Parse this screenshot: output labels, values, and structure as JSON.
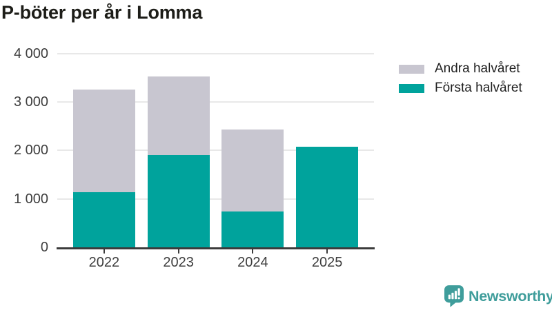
{
  "title": "P-böter per år i Lomma",
  "chart_data": {
    "type": "bar",
    "stacked": true,
    "title": "P-böter per år i Lomma",
    "categories": [
      "2022",
      "2023",
      "2024",
      "2025"
    ],
    "series": [
      {
        "name": "Första halvåret",
        "color": "#00a39c",
        "values": [
          1140,
          1910,
          740,
          2070
        ]
      },
      {
        "name": "Andra halvåret",
        "color": "#c8c6d0",
        "values": [
          2120,
          1620,
          1690,
          0
        ]
      }
    ],
    "totals": [
      3260,
      3530,
      2430,
      2070
    ],
    "xlabel": "",
    "ylabel": "",
    "ylim": [
      0,
      4000
    ],
    "yticks": [
      0,
      1000,
      2000,
      3000,
      4000
    ],
    "ytick_labels": [
      "0",
      "1 000",
      "2 000",
      "3 000",
      "4 000"
    ],
    "grid": true,
    "legend": [
      {
        "label": "Andra halvåret",
        "color": "#c8c6d0"
      },
      {
        "label": "Första halvåret",
        "color": "#00a39c"
      }
    ],
    "legend_position": "top-right"
  },
  "branding": {
    "wordmark": "Newsworthy",
    "logo_color": "#3f9d9b",
    "icon": "newsworthy-chart-bubble-icon"
  },
  "colors": {
    "background": "#ffffff",
    "title_text": "#1d1d18",
    "axis_line": "#3b3b3b",
    "gridline": "#e8e8e8",
    "tick_label": "#3e3e3e",
    "legend_text": "#1f1f1f"
  }
}
